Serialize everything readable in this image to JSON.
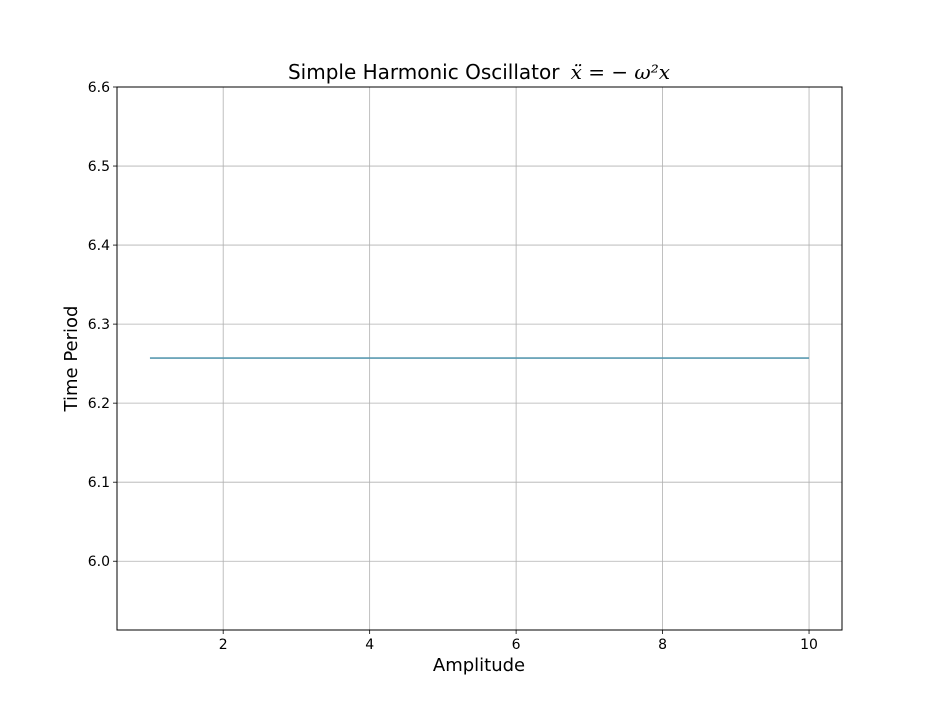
{
  "chart_data": {
    "type": "line",
    "title": "Simple Harmonic Oscillator ẍ = − ω²x",
    "title_text": "Simple Harmonic Oscillator",
    "title_math": "ẍ = − ω²x",
    "xlabel": "Amplitude",
    "ylabel": "Time Period",
    "xlim": [
      0.55,
      10.45
    ],
    "ylim": [
      5.913,
      6.6
    ],
    "x_ticks": [
      2,
      4,
      6,
      8,
      10
    ],
    "x_tick_labels": [
      "2",
      "4",
      "6",
      "8",
      "10"
    ],
    "y_ticks": [
      6.0,
      6.1,
      6.2,
      6.3,
      6.4,
      6.5,
      6.6
    ],
    "y_tick_labels": [
      "6.0",
      "6.1",
      "6.2",
      "6.3",
      "6.4",
      "6.5",
      "6.6"
    ],
    "grid": true,
    "series": [
      {
        "color": "#5a9ab0",
        "x": [
          1,
          2,
          3,
          4,
          5,
          6,
          7,
          8,
          9,
          10
        ],
        "y": [
          6.257,
          6.257,
          6.257,
          6.257,
          6.257,
          6.257,
          6.257,
          6.257,
          6.257,
          6.257
        ]
      }
    ]
  }
}
